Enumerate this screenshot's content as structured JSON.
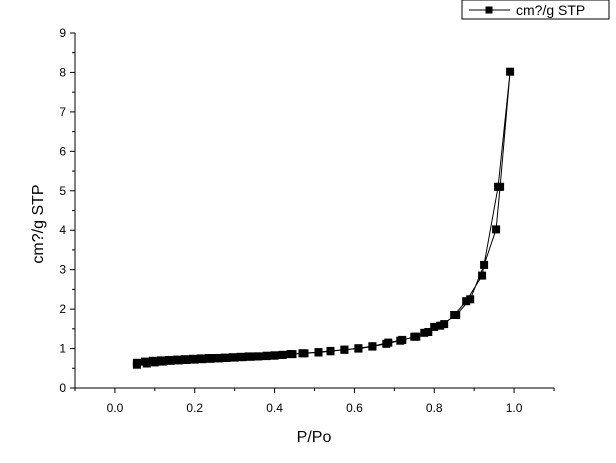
{
  "chart_data": {
    "type": "scatter",
    "title": "",
    "xlabel": "P/Po",
    "ylabel": "cm?/g STP",
    "xlim": [
      -0.1,
      1.1
    ],
    "ylim": [
      0,
      9
    ],
    "xticks": [
      0.0,
      0.2,
      0.4,
      0.6,
      0.8,
      1.0
    ],
    "xtick_labels": [
      "0.0",
      "0.2",
      "0.4",
      "0.6",
      "0.8",
      "1.0"
    ],
    "yticks": [
      0,
      1,
      2,
      3,
      4,
      5,
      6,
      7,
      8,
      9
    ],
    "ytick_labels": [
      "0",
      "1",
      "2",
      "3",
      "4",
      "5",
      "6",
      "7",
      "8",
      "9"
    ],
    "grid": false,
    "legend": {
      "position": "top-right",
      "entries": [
        "cm?/g STP"
      ]
    },
    "series": [
      {
        "name": "cm?/g STP",
        "marker": "square",
        "color": "#000000",
        "x": [
          0.055,
          0.08,
          0.1,
          0.12,
          0.14,
          0.16,
          0.18,
          0.2,
          0.22,
          0.24,
          0.26,
          0.28,
          0.3,
          0.32,
          0.34,
          0.36,
          0.38,
          0.4,
          0.42,
          0.44,
          0.47,
          0.51,
          0.54,
          0.575,
          0.61,
          0.645,
          0.68,
          0.715,
          0.75,
          0.775,
          0.8,
          0.825,
          0.85,
          0.88,
          0.92,
          0.96,
          0.99,
          0.965,
          0.955,
          0.925,
          0.89,
          0.855,
          0.815,
          0.785,
          0.755,
          0.72,
          0.685,
          0.645,
          0.61,
          0.575,
          0.54,
          0.51,
          0.475,
          0.445,
          0.42,
          0.4,
          0.38,
          0.355,
          0.335,
          0.315,
          0.295,
          0.275,
          0.255,
          0.235,
          0.215,
          0.195,
          0.175,
          0.155,
          0.135,
          0.115,
          0.095,
          0.075,
          0.055
        ],
        "y": [
          0.59,
          0.62,
          0.65,
          0.67,
          0.69,
          0.7,
          0.71,
          0.72,
          0.73,
          0.74,
          0.75,
          0.76,
          0.77,
          0.78,
          0.79,
          0.8,
          0.81,
          0.82,
          0.84,
          0.86,
          0.88,
          0.91,
          0.94,
          0.97,
          1.0,
          1.05,
          1.12,
          1.2,
          1.3,
          1.4,
          1.55,
          1.62,
          1.85,
          2.2,
          2.85,
          5.1,
          8.02,
          5.1,
          4.02,
          3.12,
          2.25,
          1.85,
          1.58,
          1.42,
          1.3,
          1.22,
          1.15,
          1.06,
          1.01,
          0.97,
          0.93,
          0.9,
          0.88,
          0.86,
          0.84,
          0.83,
          0.82,
          0.8,
          0.8,
          0.79,
          0.78,
          0.77,
          0.76,
          0.76,
          0.75,
          0.74,
          0.73,
          0.72,
          0.71,
          0.7,
          0.69,
          0.67,
          0.64
        ]
      }
    ]
  }
}
